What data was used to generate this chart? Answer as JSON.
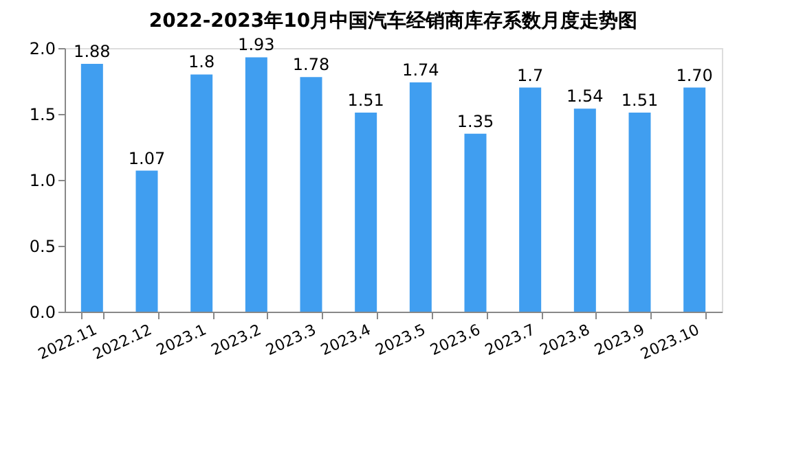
{
  "chart_data": {
    "type": "bar",
    "title": "2022-2023年10月中国汽车经销商库存系数月度走势图",
    "categories": [
      "2022.11",
      "2022.12",
      "2023.1",
      "2023.2",
      "2023.3",
      "2023.4",
      "2023.5",
      "2023.6",
      "2023.7",
      "2023.8",
      "2023.9",
      "2023.10"
    ],
    "values": [
      1.88,
      1.07,
      1.8,
      1.93,
      1.78,
      1.51,
      1.74,
      1.35,
      1.7,
      1.54,
      1.51,
      1.7
    ],
    "value_labels": [
      "1.88",
      "1.07",
      "1.8",
      "1.93",
      "1.78",
      "1.51",
      "1.74",
      "1.35",
      "1.7",
      "1.54",
      "1.51",
      "1.70"
    ],
    "color": "#409ef0",
    "ylim": [
      0,
      2
    ],
    "yticks": [
      {
        "value": 0,
        "label": "0.0"
      },
      {
        "value": 0.5,
        "label": "0.5"
      },
      {
        "value": 1,
        "label": "1.0"
      },
      {
        "value": 1.5,
        "label": "1.5"
      },
      {
        "value": 2,
        "label": "2.0"
      }
    ],
    "grid": false
  }
}
